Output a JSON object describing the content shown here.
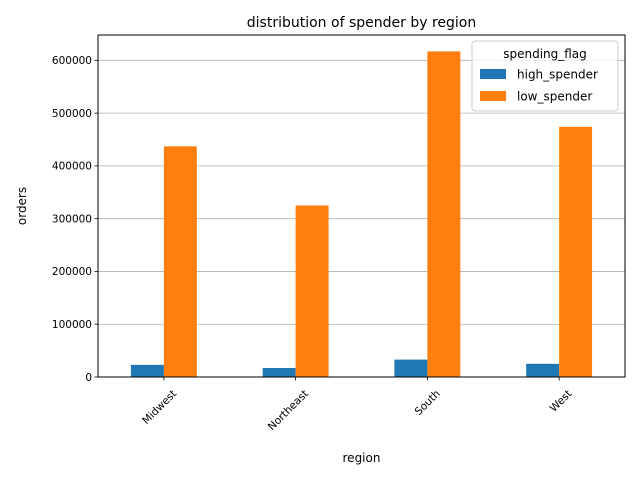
{
  "chart_data": {
    "type": "bar",
    "title": "distribution of spender by region",
    "xlabel": "region",
    "ylabel": "orders",
    "categories": [
      "Midwest",
      "Northeast",
      "South",
      "West"
    ],
    "series": [
      {
        "name": "high_spender",
        "color": "#1f77b4",
        "values": [
          23000,
          17000,
          33000,
          25000
        ]
      },
      {
        "name": "low_spender",
        "color": "#ff7f0e",
        "values": [
          437000,
          325000,
          617000,
          474000
        ]
      }
    ],
    "ylim": [
      0,
      648000
    ],
    "yticks": [
      0,
      100000,
      200000,
      300000,
      400000,
      500000,
      600000
    ],
    "ytick_labels": [
      "0",
      "100000",
      "200000",
      "300000",
      "400000",
      "500000",
      "600000"
    ],
    "y_grid": true,
    "x_tick_rotation_deg": 45,
    "legend": {
      "title": "spending_flag",
      "placement": "top-right"
    }
  }
}
